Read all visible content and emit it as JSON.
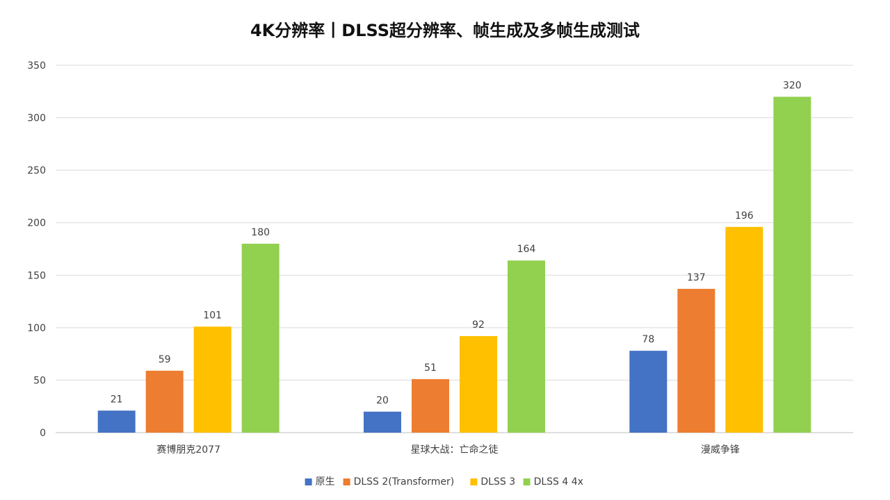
{
  "chart_data": {
    "type": "bar",
    "title": "4K分辨率丨DLSS超分辨率、帧生成及多帧生成测试",
    "categories": [
      "赛博朋克2077",
      "星球大战：亡命之徒",
      "漫威争锋"
    ],
    "series": [
      {
        "name": "原生",
        "color": "#4472C4",
        "values": [
          21,
          20,
          78
        ]
      },
      {
        "name": "DLSS 2(Transformer)",
        "color": "#ED7D31",
        "values": [
          59,
          51,
          137
        ]
      },
      {
        "name": "DLSS 3",
        "color": "#FFC000",
        "values": [
          101,
          92,
          196
        ]
      },
      {
        "name": "DLSS 4 4x",
        "color": "#92D050",
        "values": [
          180,
          164,
          320
        ]
      }
    ],
    "y_ticks": [
      "0",
      "50",
      "100",
      "150",
      "200",
      "250",
      "300",
      "350"
    ],
    "ylim": [
      0,
      350
    ],
    "grid": true,
    "legend_position": "bottom"
  }
}
